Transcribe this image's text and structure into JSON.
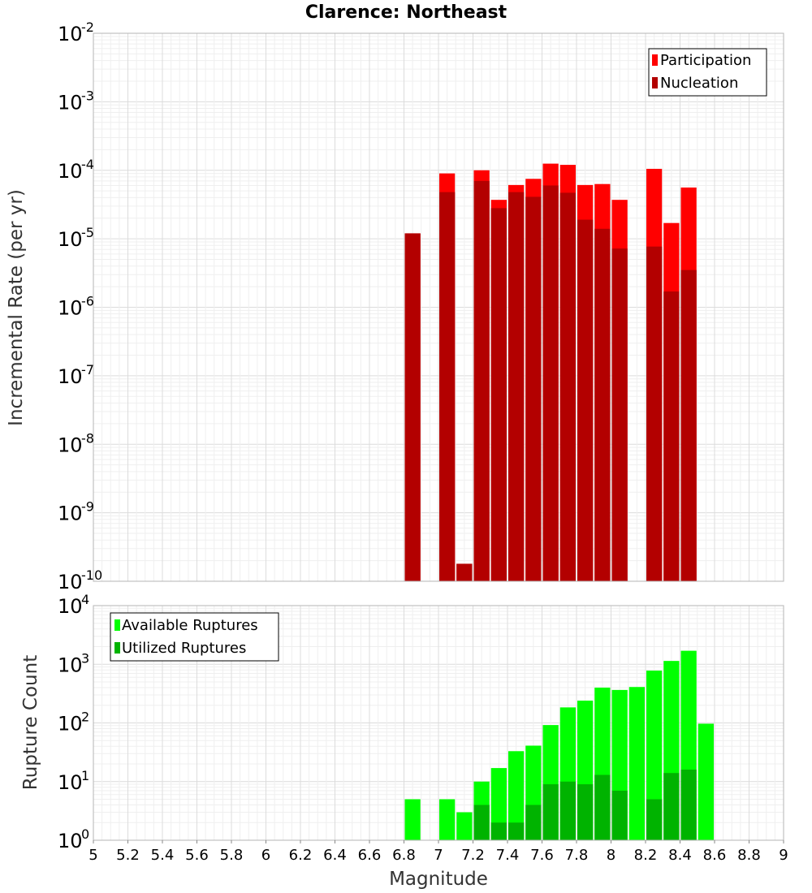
{
  "chart_data": [
    {
      "type": "bar",
      "title": "Clarence: Northeast",
      "ylabel": "Incremental Rate (per yr)",
      "xlabel": "",
      "y_scale": "log",
      "ylim_exp": [
        -10,
        -2
      ],
      "xlim": [
        5,
        9
      ],
      "legend_position": "top-right",
      "grid": true,
      "x": [
        6.85,
        7.05,
        7.15,
        7.25,
        7.35,
        7.45,
        7.55,
        7.65,
        7.75,
        7.85,
        7.95,
        8.05,
        8.25,
        8.35,
        8.45
      ],
      "series": [
        {
          "name": "Participation",
          "color": "#ff0000",
          "values": [
            1.2e-05,
            9e-05,
            1.8e-10,
            0.0001,
            3.7e-05,
            6.1e-05,
            7.5e-05,
            0.000125,
            0.00012,
            6.1e-05,
            6.3e-05,
            3.7e-05,
            0.000105,
            1.7e-05,
            5.6e-05
          ]
        },
        {
          "name": "Nucleation",
          "color": "#b30000",
          "values": [
            1.2e-05,
            4.8e-05,
            1.8e-10,
            7e-05,
            2.8e-05,
            4.8e-05,
            4.1e-05,
            6e-05,
            4.7e-05,
            1.9e-05,
            1.4e-05,
            7.2e-06,
            7.7e-06,
            1.7e-06,
            3.5e-06
          ]
        }
      ]
    },
    {
      "type": "bar",
      "title": "",
      "ylabel": "Rupture Count",
      "xlabel": "Magnitude",
      "y_scale": "log",
      "ylim_exp": [
        0,
        4
      ],
      "xlim": [
        5,
        9
      ],
      "legend_position": "top-left",
      "grid": true,
      "x": [
        6.85,
        7.05,
        7.15,
        7.25,
        7.35,
        7.45,
        7.55,
        7.65,
        7.75,
        7.85,
        7.95,
        8.05,
        8.15,
        8.25,
        8.35,
        8.45,
        8.55
      ],
      "series": [
        {
          "name": "Available Ruptures",
          "color": "#00ff00",
          "values": [
            5,
            5,
            3,
            10,
            17,
            33,
            41,
            92,
            184,
            240,
            400,
            365,
            410,
            780,
            1140,
            1700,
            97
          ]
        },
        {
          "name": "Utilized Ruptures",
          "color": "#00b300",
          "values": [
            1,
            1,
            1,
            4,
            2,
            2,
            4,
            9,
            10,
            9,
            13,
            7,
            1,
            5,
            14,
            16,
            0
          ]
        }
      ]
    }
  ],
  "x_ticks": [
    "5",
    "5.2",
    "5.4",
    "5.6",
    "5.8",
    "6",
    "6.2",
    "6.4",
    "6.6",
    "6.8",
    "7",
    "7.2",
    "7.4",
    "7.6",
    "7.8",
    "8",
    "8.2",
    "8.4",
    "8.6",
    "8.8",
    "9"
  ],
  "top_ticks": {
    "base": "10",
    "exponents": [
      "-10",
      "-9",
      "-8",
      "-7",
      "-6",
      "-5",
      "-4",
      "-3",
      "-2"
    ]
  },
  "bottom_ticks": {
    "base": "10",
    "exponents": [
      "0",
      "1",
      "2",
      "3",
      "4"
    ]
  }
}
